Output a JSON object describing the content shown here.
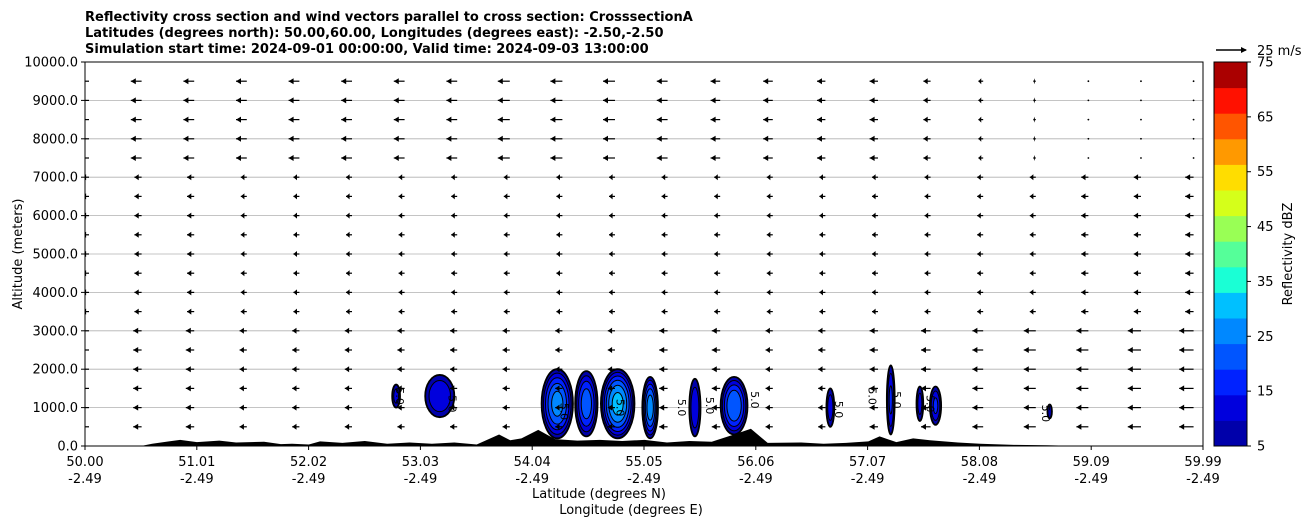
{
  "chart_data": {
    "type": "heatmap",
    "title_lines": [
      "Reflectivity cross section and wind vectors parallel to cross section: CrosssectionA",
      "Latitudes (degrees north): 50.00,60.00, Longitudes (degrees east): -2.50,-2.50",
      "Simulation start time: 2024-09-01 00:00:00, Valid time: 2024-09-03 13:00:00"
    ],
    "ylabel": "Altitude (meters)",
    "xlabel_lines": [
      "Latitude (degrees N)",
      "Longitude (degrees E)"
    ],
    "ylim": [
      0,
      10000
    ],
    "yticks": [
      "0.0",
      "1000.0",
      "2000.0",
      "3000.0",
      "4000.0",
      "5000.0",
      "6000.0",
      "7000.0",
      "8000.0",
      "9000.0",
      "10000.0"
    ],
    "xlim": [
      50.0,
      59.99
    ],
    "xticks_lat": [
      "50.00",
      "51.01",
      "52.02",
      "53.03",
      "54.04",
      "55.05",
      "56.06",
      "57.07",
      "58.08",
      "59.09",
      "59.99"
    ],
    "xticks_lon": [
      "-2.49",
      "-2.49",
      "-2.49",
      "-2.49",
      "-2.49",
      "-2.49",
      "-2.49",
      "-2.49",
      "-2.49",
      "-2.49",
      "-2.49"
    ],
    "grid": "horizontal",
    "colorbar": {
      "label": "Reflectivity dBZ",
      "levels": [
        5,
        10,
        15,
        20,
        25,
        30,
        35,
        40,
        45,
        50,
        55,
        60,
        65,
        70,
        75
      ],
      "tick_labels": [
        "5",
        "15",
        "25",
        "35",
        "45",
        "55",
        "65",
        "75"
      ],
      "colors": [
        "#0000aa",
        "#0000dd",
        "#0022ff",
        "#0055ff",
        "#0088ff",
        "#00c0ff",
        "#1affd5",
        "#55ff99",
        "#99ff55",
        "#d5ff1a",
        "#ffdd00",
        "#ff9900",
        "#ff5500",
        "#ff1100",
        "#aa0000"
      ]
    },
    "vector_key": {
      "label": "25 m/s",
      "speed": 25
    },
    "contour_label": "5.0",
    "wind_vectors": {
      "heights": [
        500,
        1000,
        1500,
        2000,
        2500,
        3000,
        3500,
        4000,
        4500,
        5000,
        5500,
        6000,
        6500,
        7000,
        7500,
        8000,
        8500,
        9000,
        9500
      ],
      "lats": [
        50.0,
        50.47,
        50.94,
        51.41,
        51.88,
        52.35,
        52.82,
        53.29,
        53.76,
        54.23,
        54.7,
        55.17,
        55.64,
        56.11,
        56.58,
        57.05,
        57.52,
        57.99,
        58.46,
        58.93,
        59.4,
        59.87
      ],
      "u_low": [
        -8,
        -7,
        -7,
        -6,
        -6,
        -6,
        -6,
        -6,
        -6,
        -6,
        -6,
        -7,
        -7,
        -6,
        -6,
        -7,
        -8,
        -9,
        -10,
        -10,
        -11,
        -12
      ],
      "u_mid": [
        -6,
        -6,
        -6,
        -5,
        -5,
        -5,
        -5,
        -5,
        -5,
        -5,
        -5,
        -5,
        -5,
        -5,
        -5,
        -5,
        -5,
        -5,
        -5,
        -6,
        -6,
        -7
      ],
      "u_high": [
        -9,
        -9,
        -9,
        -9,
        -9,
        -9,
        -9,
        -9,
        -10,
        -10,
        -10,
        -9,
        -8,
        -8,
        -7,
        -7,
        -6,
        -4,
        -2,
        -1,
        -1,
        -1
      ]
    },
    "terrain": [
      [
        50.0,
        0
      ],
      [
        50.5,
        0
      ],
      [
        50.6,
        60
      ],
      [
        50.75,
        120
      ],
      [
        50.85,
        160
      ],
      [
        51.0,
        100
      ],
      [
        51.2,
        140
      ],
      [
        51.35,
        90
      ],
      [
        51.6,
        110
      ],
      [
        51.75,
        50
      ],
      [
        51.85,
        60
      ],
      [
        52.0,
        40
      ],
      [
        52.1,
        120
      ],
      [
        52.3,
        80
      ],
      [
        52.5,
        130
      ],
      [
        52.7,
        60
      ],
      [
        52.9,
        90
      ],
      [
        53.1,
        60
      ],
      [
        53.3,
        90
      ],
      [
        53.5,
        40
      ],
      [
        53.7,
        300
      ],
      [
        53.8,
        150
      ],
      [
        53.9,
        200
      ],
      [
        54.05,
        420
      ],
      [
        54.2,
        180
      ],
      [
        54.4,
        140
      ],
      [
        54.6,
        160
      ],
      [
        54.8,
        130
      ],
      [
        55.0,
        160
      ],
      [
        55.2,
        90
      ],
      [
        55.4,
        130
      ],
      [
        55.6,
        110
      ],
      [
        55.8,
        300
      ],
      [
        55.95,
        450
      ],
      [
        56.1,
        80
      ],
      [
        56.4,
        90
      ],
      [
        56.6,
        60
      ],
      [
        56.8,
        80
      ],
      [
        57.0,
        120
      ],
      [
        57.1,
        250
      ],
      [
        57.25,
        100
      ],
      [
        57.4,
        200
      ],
      [
        57.55,
        150
      ],
      [
        57.8,
        90
      ],
      [
        58.0,
        60
      ],
      [
        58.3,
        30
      ],
      [
        58.6,
        20
      ],
      [
        58.9,
        0
      ],
      [
        59.99,
        0
      ]
    ],
    "cells": [
      {
        "cx": 52.78,
        "cy": 1300,
        "rx": 0.035,
        "ry": 300,
        "peak": 12
      },
      {
        "cx": 53.17,
        "cy": 1300,
        "rx": 0.13,
        "ry": 550,
        "peak": 15
      },
      {
        "cx": 54.22,
        "cy": 1100,
        "rx": 0.14,
        "ry": 900,
        "peak": 27
      },
      {
        "cx": 54.48,
        "cy": 1100,
        "rx": 0.1,
        "ry": 850,
        "peak": 23
      },
      {
        "cx": 54.76,
        "cy": 1100,
        "rx": 0.15,
        "ry": 900,
        "peak": 32
      },
      {
        "cx": 55.05,
        "cy": 1000,
        "rx": 0.07,
        "ry": 800,
        "peak": 28
      },
      {
        "cx": 55.45,
        "cy": 1000,
        "rx": 0.05,
        "ry": 750,
        "peak": 14
      },
      {
        "cx": 55.8,
        "cy": 1050,
        "rx": 0.12,
        "ry": 750,
        "peak": 25
      },
      {
        "cx": 56.66,
        "cy": 1000,
        "rx": 0.035,
        "ry": 500,
        "peak": 13
      },
      {
        "cx": 57.2,
        "cy": 1200,
        "rx": 0.035,
        "ry": 900,
        "peak": 16
      },
      {
        "cx": 57.46,
        "cy": 1100,
        "rx": 0.03,
        "ry": 450,
        "peak": 12
      },
      {
        "cx": 57.6,
        "cy": 1050,
        "rx": 0.05,
        "ry": 500,
        "peak": 16
      },
      {
        "cx": 58.62,
        "cy": 900,
        "rx": 0.02,
        "ry": 180,
        "peak": 8
      }
    ],
    "contour_label_positions": [
      [
        52.78,
        1300
      ],
      [
        53.25,
        1100
      ],
      [
        54.25,
        900
      ],
      [
        54.75,
        1000
      ],
      [
        55.3,
        1000
      ],
      [
        55.55,
        1050
      ],
      [
        55.95,
        1200
      ],
      [
        56.7,
        950
      ],
      [
        57.0,
        1300
      ],
      [
        57.22,
        1200
      ],
      [
        57.52,
        1100
      ],
      [
        58.55,
        850
      ]
    ]
  }
}
